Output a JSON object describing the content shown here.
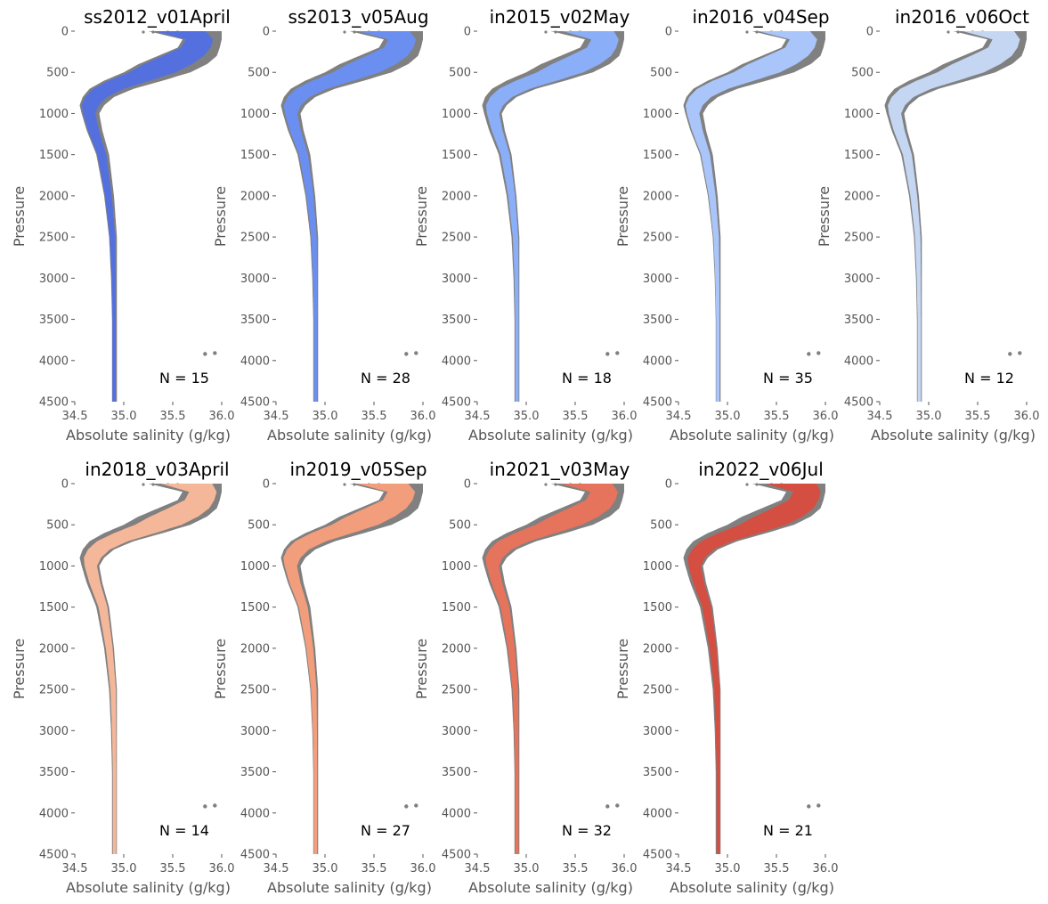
{
  "axis": {
    "xlabel": "Absolute salinity (g/kg)",
    "ylabel": "Pressure",
    "xlim": [
      34.5,
      36.0
    ],
    "ylim": [
      4500,
      0
    ],
    "xticks": [
      34.5,
      35.0,
      35.5,
      36.0
    ],
    "xtick_labels": [
      "34.5",
      "35.0",
      "35.5",
      "36.0"
    ],
    "yticks": [
      0,
      500,
      1000,
      1500,
      2000,
      2500,
      3000,
      3500,
      4000,
      4500
    ],
    "ytick_labels": [
      "0",
      "500",
      "1000",
      "1500",
      "2000",
      "2500",
      "3000",
      "3500",
      "4000",
      "4500"
    ],
    "grid": false,
    "inverted_y": true
  },
  "colors": {
    "background_all_cruises": "#808080"
  },
  "chart_data": {
    "type": "scatter",
    "layout": "small-multiples 2x5 (9 panels)",
    "background_series": "all cruises (grey)",
    "profile_envelope": {
      "pressure": [
        0,
        100,
        200,
        300,
        400,
        500,
        600,
        700,
        800,
        900,
        1000,
        1200,
        1500,
        2000,
        2500,
        3000,
        3500,
        4000,
        4500
      ],
      "salinity_low": [
        35.25,
        35.6,
        35.55,
        35.35,
        35.15,
        35.0,
        34.8,
        34.65,
        34.58,
        34.55,
        34.57,
        34.62,
        34.72,
        34.8,
        34.85,
        34.87,
        34.88,
        34.88,
        34.88
      ],
      "salinity_high": [
        36.0,
        36.0,
        35.98,
        35.95,
        35.85,
        35.68,
        35.4,
        35.1,
        34.9,
        34.8,
        34.75,
        34.78,
        34.85,
        34.9,
        34.93,
        34.93,
        34.93,
        34.93,
        34.93
      ]
    },
    "outlier_points": [
      {
        "salinity": 35.83,
        "pressure": 3920
      },
      {
        "salinity": 35.93,
        "pressure": 3910
      }
    ],
    "series": [
      {
        "name": "ss2012_v01April",
        "n_label": "N = 15",
        "count": 15,
        "color": "#5470de"
      },
      {
        "name": "ss2013_v05Aug",
        "n_label": "N = 28",
        "count": 28,
        "color": "#6a8ff0"
      },
      {
        "name": "in2015_v02May",
        "n_label": "N = 18",
        "count": 18,
        "color": "#8aaef7"
      },
      {
        "name": "in2016_v04Sep",
        "n_label": "N = 35",
        "count": 35,
        "color": "#a9c5f9"
      },
      {
        "name": "in2016_v06Oct",
        "n_label": "N = 12",
        "count": 12,
        "color": "#c5d6f2"
      },
      {
        "name": "in2018_v03April",
        "n_label": "N = 14",
        "count": 14,
        "color": "#f5b799"
      },
      {
        "name": "in2019_v05Sep",
        "n_label": "N = 27",
        "count": 27,
        "color": "#f29d7c"
      },
      {
        "name": "in2021_v03May",
        "n_label": "N = 32",
        "count": 32,
        "color": "#e6735b"
      },
      {
        "name": "in2022_v06Jul",
        "n_label": "N = 21",
        "count": 21,
        "color": "#d44e41"
      }
    ]
  }
}
